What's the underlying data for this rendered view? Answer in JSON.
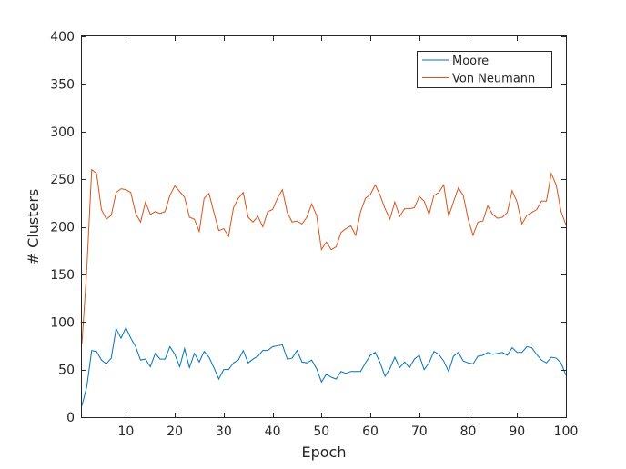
{
  "chart_data": {
    "type": "line",
    "xlabel": "Epoch",
    "ylabel": "# Clusters",
    "xlim": [
      1,
      100
    ],
    "ylim": [
      0,
      400
    ],
    "xticks": [
      10,
      20,
      30,
      40,
      50,
      60,
      70,
      80,
      90,
      100
    ],
    "yticks": [
      0,
      50,
      100,
      150,
      200,
      250,
      300,
      350,
      400
    ],
    "grid": false,
    "legend": "top-right",
    "x": [
      1,
      2,
      3,
      4,
      5,
      6,
      7,
      8,
      9,
      10,
      11,
      12,
      13,
      14,
      15,
      16,
      17,
      18,
      19,
      20,
      21,
      22,
      23,
      24,
      25,
      26,
      27,
      28,
      29,
      30,
      31,
      32,
      33,
      34,
      35,
      36,
      37,
      38,
      39,
      40,
      41,
      42,
      43,
      44,
      45,
      46,
      47,
      48,
      49,
      50,
      51,
      52,
      53,
      54,
      55,
      56,
      57,
      58,
      59,
      60,
      61,
      62,
      63,
      64,
      65,
      66,
      67,
      68,
      69,
      70,
      71,
      72,
      73,
      74,
      75,
      76,
      77,
      78,
      79,
      80,
      81,
      82,
      83,
      84,
      85,
      86,
      87,
      88,
      89,
      90,
      91,
      92,
      93,
      94,
      95,
      96,
      97,
      98,
      99,
      100
    ],
    "series": [
      {
        "name": "Moore",
        "color": "#0072bd",
        "values": [
          12,
          32,
          70,
          69,
          60,
          56,
          62,
          93,
          83,
          94,
          83,
          74,
          60,
          61,
          53,
          67,
          61,
          61,
          74,
          66,
          53,
          72,
          52,
          67,
          58,
          69,
          63,
          52,
          40,
          50,
          50,
          57,
          60,
          70,
          57,
          61,
          64,
          70,
          70,
          74,
          75,
          76,
          61,
          62,
          70,
          58,
          57,
          60,
          51,
          37,
          45,
          42,
          40,
          48,
          46,
          48,
          48,
          48,
          57,
          65,
          68,
          57,
          43,
          51,
          63,
          52,
          58,
          52,
          61,
          65,
          50,
          57,
          69,
          66,
          59,
          48,
          64,
          68,
          59,
          57,
          56,
          64,
          65,
          68,
          66,
          67,
          68,
          65,
          73,
          68,
          68,
          74,
          73,
          66,
          60,
          57,
          63,
          62,
          57,
          44
        ]
      },
      {
        "name": "Von Neumann",
        "color": "#d95319",
        "values": [
          77,
          155,
          260,
          256,
          218,
          208,
          212,
          236,
          240,
          239,
          236,
          214,
          205,
          226,
          213,
          216,
          214,
          216,
          233,
          243,
          237,
          231,
          210,
          208,
          195,
          230,
          235,
          215,
          196,
          198,
          190,
          220,
          230,
          236,
          210,
          205,
          211,
          200,
          216,
          218,
          230,
          239,
          215,
          205,
          206,
          203,
          210,
          224,
          212,
          176,
          184,
          176,
          179,
          194,
          198,
          201,
          191,
          216,
          230,
          234,
          244,
          233,
          219,
          208,
          226,
          211,
          219,
          219,
          220,
          232,
          227,
          213,
          233,
          236,
          244,
          211,
          226,
          241,
          233,
          208,
          191,
          205,
          206,
          222,
          213,
          209,
          210,
          215,
          238,
          226,
          203,
          212,
          215,
          218,
          227,
          227,
          256,
          244,
          216,
          202
        ]
      }
    ]
  }
}
